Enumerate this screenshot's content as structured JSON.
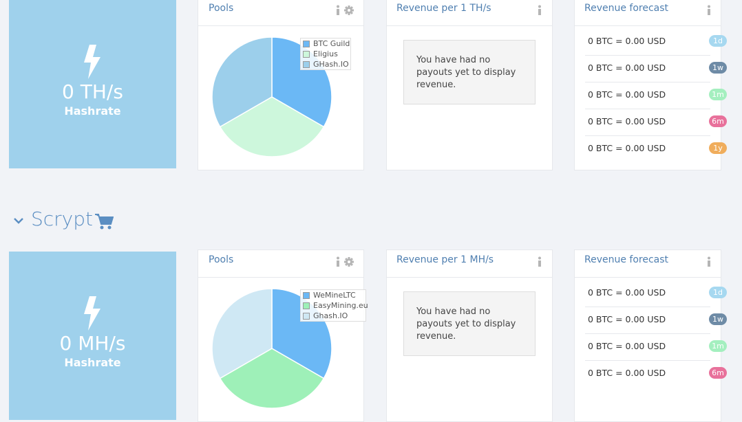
{
  "sections": [
    {
      "hashrate": {
        "value": "0 TH/s",
        "label": "Hashrate"
      },
      "pools": {
        "title": "Pools",
        "chart": {
          "type": "pie",
          "categories": [
            "BTC Guild",
            "Eligius",
            "GHash.IO"
          ],
          "values": [
            33.3,
            33.3,
            33.3
          ],
          "colors": [
            "#6bb8f5",
            "#cdf7dc",
            "#9ccfeb"
          ]
        }
      },
      "revenue": {
        "title": "Revenue per 1 TH/s",
        "message": "You have had no payouts yet to display revenue."
      },
      "forecast": {
        "title": "Revenue forecast",
        "rows": [
          {
            "text": "0 BTC = 0.00 USD",
            "period": "1d",
            "color": "#a6d8f0"
          },
          {
            "text": "0 BTC = 0.00 USD",
            "period": "1w",
            "color": "#6e8ba6"
          },
          {
            "text": "0 BTC = 0.00 USD",
            "period": "1m",
            "color": "#a4efbf"
          },
          {
            "text": "0 BTC = 0.00 USD",
            "period": "6m",
            "color": "#e8719b"
          },
          {
            "text": "0 BTC = 0.00 USD",
            "period": "1y",
            "color": "#f0ad5c"
          }
        ]
      }
    },
    {
      "heading": "Scrypt",
      "hashrate": {
        "value": "0 MH/s",
        "label": "Hashrate"
      },
      "pools": {
        "title": "Pools",
        "chart": {
          "type": "pie",
          "categories": [
            "WeMineLTC",
            "EasyMining.eu",
            "Ghash.IO"
          ],
          "values": [
            33.3,
            33.3,
            33.3
          ],
          "colors": [
            "#6bb8f5",
            "#9ef0b8",
            "#cfe8f4"
          ]
        }
      },
      "revenue": {
        "title": "Revenue per 1 MH/s",
        "message": "You have had no payouts yet to display revenue."
      },
      "forecast": {
        "title": "Revenue forecast",
        "rows": [
          {
            "text": "0 BTC = 0.00 USD",
            "period": "1d",
            "color": "#a6d8f0"
          },
          {
            "text": "0 BTC = 0.00 USD",
            "period": "1w",
            "color": "#6e8ba6"
          },
          {
            "text": "0 BTC = 0.00 USD",
            "period": "1m",
            "color": "#a4efbf"
          },
          {
            "text": "0 BTC = 0.00 USD",
            "period": "6m",
            "color": "#e8719b"
          }
        ]
      }
    }
  ]
}
